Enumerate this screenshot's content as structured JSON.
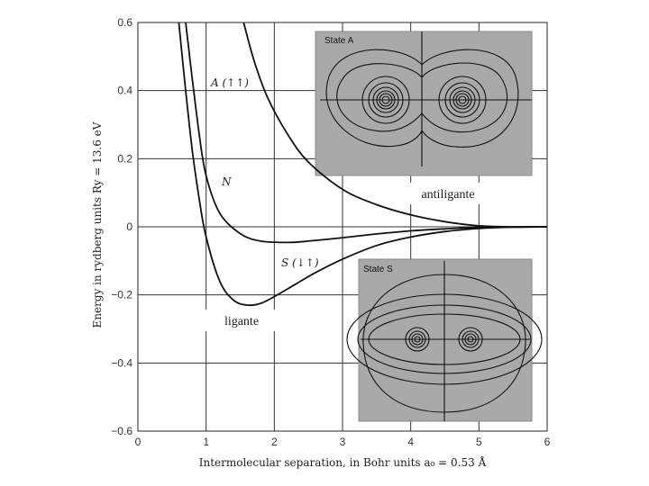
{
  "chart_data": {
    "type": "line",
    "xlabel": "Intermolecular separation, in Bohr units a₀ = 0.53 Å",
    "ylabel": "Energy in rydberg units Ry = 13.6 eV",
    "xlim": [
      0,
      6
    ],
    "ylim": [
      -0.6,
      0.6
    ],
    "x_ticks": [
      "0",
      "1",
      "2",
      "3",
      "4",
      "5",
      "6"
    ],
    "y_ticks": [
      "0.6",
      "0.4",
      "0.2",
      "0",
      "−0.2",
      "−0.4",
      "−0.6"
    ],
    "grid": true,
    "series": [
      {
        "name": "A (↑↑)",
        "x": [
          1.55,
          1.7,
          1.9,
          2.2,
          2.5,
          3.0,
          3.5,
          4.0,
          4.5,
          5.0,
          5.5,
          6.0
        ],
        "y": [
          0.6,
          0.49,
          0.38,
          0.27,
          0.19,
          0.11,
          0.065,
          0.035,
          0.015,
          0.003,
          0.0,
          0.0
        ]
      },
      {
        "name": "N",
        "x": [
          0.7,
          0.8,
          0.9,
          1.0,
          1.2,
          1.5,
          1.8,
          2.2,
          2.5,
          3.0,
          3.5,
          4.0,
          4.5,
          5.0,
          6.0
        ],
        "y": [
          0.6,
          0.43,
          0.27,
          0.15,
          0.04,
          -0.02,
          -0.042,
          -0.046,
          -0.042,
          -0.032,
          -0.021,
          -0.012,
          -0.006,
          -0.002,
          0.0
        ]
      },
      {
        "name": "S (↓↑)",
        "x": [
          0.6,
          0.7,
          0.8,
          0.9,
          1.0,
          1.2,
          1.4,
          1.6,
          1.8,
          2.0,
          2.3,
          2.6,
          3.0,
          3.5,
          4.0,
          4.5,
          5.0,
          5.5,
          6.0
        ],
        "y": [
          0.6,
          0.4,
          0.22,
          0.08,
          -0.03,
          -0.16,
          -0.215,
          -0.23,
          -0.225,
          -0.205,
          -0.17,
          -0.135,
          -0.095,
          -0.055,
          -0.03,
          -0.014,
          -0.005,
          -0.001,
          0.0
        ]
      }
    ],
    "insets": [
      {
        "title": "State A"
      },
      {
        "title": "State S"
      }
    ],
    "overlay_labels": [
      "antiligante",
      "ligante"
    ]
  }
}
